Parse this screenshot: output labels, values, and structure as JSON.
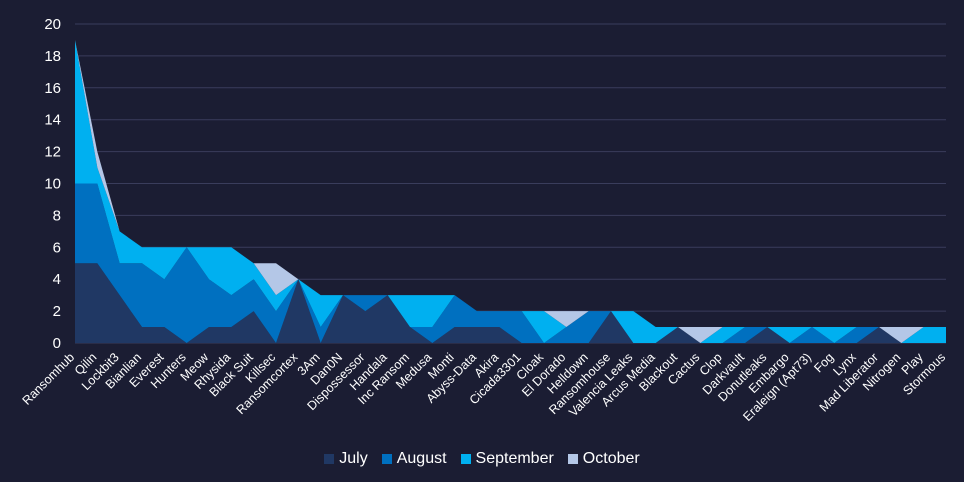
{
  "chart_data": {
    "type": "area",
    "stacked": true,
    "title": "",
    "xlabel": "",
    "ylabel": "",
    "ylim": [
      0,
      20
    ],
    "yticks": [
      0,
      2,
      4,
      6,
      8,
      10,
      12,
      14,
      16,
      18,
      20
    ],
    "grid": true,
    "legend_position": "bottom",
    "categories": [
      "Ransomhub",
      "Qilin",
      "Lockbit3",
      "Bianlian",
      "Everest",
      "Hunters",
      "Meow",
      "Rhysida",
      "Black Suit",
      "Killsec",
      "Ransomcortex",
      "3Am",
      "Dan0N",
      "Dispossessor",
      "Handala",
      "Inc Ransom",
      "Medusa",
      "Monti",
      "Abyss-Data",
      "Akira",
      "Cicada3301",
      "Cloak",
      "El Dorado",
      "Helldown",
      "Ransomhouse",
      "Valencia Leaks",
      "Arcus Media",
      "Blackout",
      "Cactus",
      "Clop",
      "Darkvault",
      "Donutleaks",
      "Embargo",
      "Eraleign (Apt73)",
      "Fog",
      "Lynx",
      "Mad Liberator",
      "Nitrogen",
      "Play",
      "Stormous"
    ],
    "series": [
      {
        "name": "July",
        "color": "#203864",
        "values": [
          5,
          5,
          3,
          1,
          1,
          0,
          1,
          1,
          2,
          0,
          4,
          0,
          3,
          2,
          3,
          1,
          0,
          1,
          1,
          1,
          0,
          0,
          0,
          0,
          2,
          0,
          0,
          1,
          0,
          0,
          0,
          1,
          0,
          0,
          0,
          0,
          1,
          0,
          0,
          0
        ]
      },
      {
        "name": "August",
        "color": "#0070c0",
        "values": [
          5,
          5,
          2,
          4,
          3,
          6,
          3,
          2,
          2,
          2,
          0,
          1,
          0,
          1,
          0,
          0,
          1,
          2,
          1,
          1,
          2,
          0,
          1,
          2,
          0,
          0,
          0,
          0,
          0,
          0,
          1,
          0,
          0,
          1,
          0,
          1,
          0,
          0,
          0,
          0
        ]
      },
      {
        "name": "September",
        "color": "#00b0f0",
        "values": [
          9,
          1,
          2,
          1,
          2,
          0,
          2,
          3,
          1,
          1,
          0,
          2,
          0,
          0,
          0,
          2,
          2,
          0,
          0,
          0,
          0,
          2,
          0,
          0,
          0,
          2,
          1,
          0,
          0,
          1,
          0,
          0,
          1,
          0,
          1,
          0,
          0,
          0,
          1,
          1
        ]
      },
      {
        "name": "October",
        "color": "#b4c7e7",
        "values": [
          0,
          1,
          0,
          0,
          0,
          0,
          0,
          0,
          0,
          2,
          0,
          0,
          0,
          0,
          0,
          0,
          0,
          0,
          0,
          0,
          0,
          0,
          1,
          0,
          0,
          0,
          0,
          0,
          1,
          0,
          0,
          0,
          0,
          0,
          0,
          0,
          0,
          1,
          0,
          0
        ]
      }
    ]
  }
}
